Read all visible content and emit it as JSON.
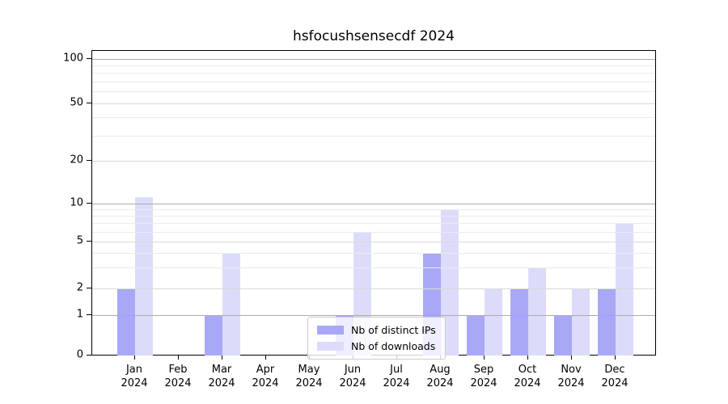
{
  "chart_data": {
    "type": "bar",
    "title": "hsfocushsensecdf 2024",
    "categories": [
      "Jan",
      "Feb",
      "Mar",
      "Apr",
      "May",
      "Jun",
      "Jul",
      "Aug",
      "Sep",
      "Oct",
      "Nov",
      "Dec"
    ],
    "tick_label_year": "2024",
    "series": [
      {
        "name": "Nb of distinct IPs",
        "color": "#a8a8f7",
        "values": [
          2,
          0,
          1,
          0,
          0,
          1,
          0,
          4,
          1,
          2,
          1,
          2
        ]
      },
      {
        "name": "Nb of downloads",
        "color": "#dcdcfa",
        "values": [
          11,
          0,
          4,
          0,
          0,
          6,
          0,
          9,
          2,
          3,
          2,
          7
        ]
      }
    ],
    "xlabel": "",
    "ylabel": "",
    "y_axis": {
      "tick_labels": [
        "0",
        "1",
        "2",
        "5",
        "10",
        "20",
        "50",
        "100"
      ],
      "tick_values": [
        0,
        1,
        2,
        5,
        10,
        20,
        50,
        100
      ],
      "scale": "log-like",
      "range": [
        0,
        100
      ]
    },
    "grid": {
      "enabled": true,
      "major_values": [
        1,
        10,
        100
      ],
      "labeled_minor_values": [
        2,
        5,
        20,
        50
      ],
      "minor_values": [
        3,
        4,
        6,
        7,
        8,
        9,
        30,
        40,
        60,
        70,
        80,
        90
      ]
    },
    "legend": {
      "position": "lower center",
      "entries": [
        "Nb of distinct IPs",
        "Nb of downloads"
      ]
    },
    "colors": {
      "background": "#ffffff",
      "spine": "#000000",
      "text": "#000000",
      "major_grid": "#ababab",
      "labeled_minor_grid": "#d9d9d9",
      "minor_grid": "#ebebeb",
      "legend_border": "#cccccc"
    }
  }
}
